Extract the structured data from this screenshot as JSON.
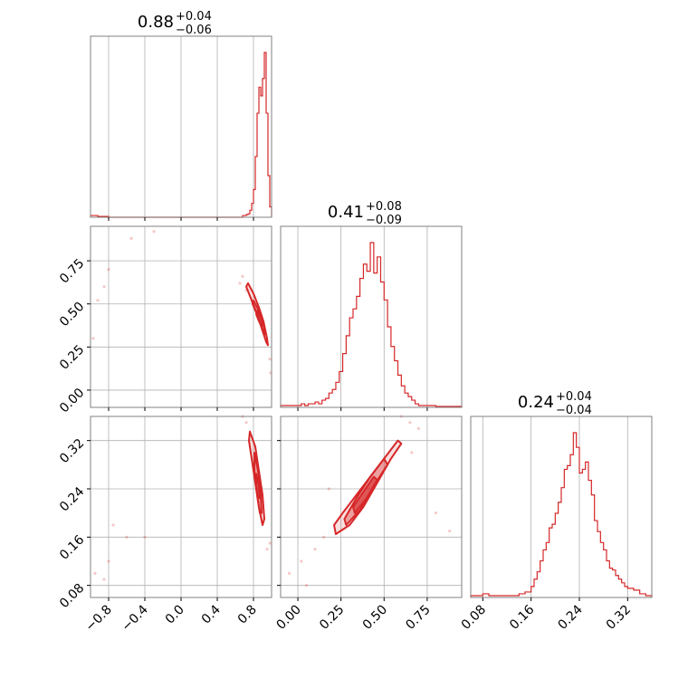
{
  "chart_data": {
    "type": "corner",
    "color": "#d62728",
    "grid": true,
    "parameters": [
      {
        "title": {
          "value": "0.88",
          "upper": "+0.04",
          "lower": "−0.06"
        },
        "range": [
          -1.0,
          1.0
        ],
        "ticks": [
          -0.8,
          -0.4,
          0.0,
          0.4,
          0.8
        ],
        "tick_labels": [
          "−0.8",
          "−0.4",
          "0.0",
          "0.4",
          "0.8"
        ],
        "hist": {
          "bin_edges": [
            -1.0,
            -0.98,
            -0.96,
            -0.94,
            -0.92,
            -0.9,
            -0.88,
            -0.86,
            -0.84,
            -0.82,
            -0.8,
            -0.4,
            0.6,
            0.62,
            0.64,
            0.66,
            0.68,
            0.7,
            0.72,
            0.74,
            0.76,
            0.78,
            0.8,
            0.82,
            0.84,
            0.86,
            0.88,
            0.9,
            0.92,
            0.94,
            0.96,
            0.98,
            1.0
          ],
          "counts": [
            0.01,
            0.01,
            0.01,
            0.01,
            0.005,
            0.005,
            0.005,
            0.005,
            0.005,
            0.005,
            0.0,
            0.0,
            0.0,
            0.0,
            0.0,
            0.0,
            0.01,
            0.01,
            0.015,
            0.02,
            0.04,
            0.08,
            0.16,
            0.35,
            0.6,
            0.75,
            0.7,
            0.8,
            0.95,
            0.6,
            0.24,
            0.06
          ]
        }
      },
      {
        "title": {
          "value": "0.41",
          "upper": "+0.08",
          "lower": "−0.09"
        },
        "range": [
          -0.1,
          0.95
        ],
        "ticks": [
          0.0,
          0.25,
          0.5,
          0.75
        ],
        "tick_labels": [
          "0.00",
          "0.25",
          "0.50",
          "0.75"
        ],
        "hist": {
          "bin_edges": [
            -0.1,
            0.02,
            0.04,
            0.06,
            0.08,
            0.1,
            0.12,
            0.14,
            0.16,
            0.18,
            0.2,
            0.22,
            0.24,
            0.26,
            0.28,
            0.3,
            0.32,
            0.34,
            0.36,
            0.38,
            0.4,
            0.42,
            0.44,
            0.46,
            0.48,
            0.5,
            0.52,
            0.54,
            0.56,
            0.58,
            0.6,
            0.62,
            0.64,
            0.66,
            0.68,
            0.7,
            0.75,
            0.8,
            0.95
          ],
          "counts": [
            0.01,
            0.02,
            0.01,
            0.02,
            0.02,
            0.03,
            0.02,
            0.04,
            0.05,
            0.08,
            0.1,
            0.14,
            0.2,
            0.3,
            0.4,
            0.5,
            0.55,
            0.62,
            0.72,
            0.8,
            0.76,
            0.92,
            0.75,
            0.84,
            0.7,
            0.6,
            0.45,
            0.34,
            0.26,
            0.18,
            0.12,
            0.08,
            0.06,
            0.04,
            0.02,
            0.01,
            0.01,
            0.005
          ]
        }
      },
      {
        "title": {
          "value": "0.24",
          "upper": "+0.04",
          "lower": "−0.04"
        },
        "range": [
          0.06,
          0.36
        ],
        "ticks": [
          0.08,
          0.16,
          0.24,
          0.32
        ],
        "tick_labels": [
          "0.08",
          "0.16",
          "0.24",
          "0.32"
        ],
        "hist": {
          "bin_edges": [
            0.06,
            0.07,
            0.08,
            0.09,
            0.1,
            0.11,
            0.12,
            0.13,
            0.14,
            0.15,
            0.16,
            0.165,
            0.17,
            0.175,
            0.18,
            0.185,
            0.19,
            0.195,
            0.2,
            0.205,
            0.21,
            0.215,
            0.22,
            0.225,
            0.23,
            0.235,
            0.24,
            0.245,
            0.25,
            0.255,
            0.26,
            0.265,
            0.27,
            0.275,
            0.28,
            0.285,
            0.29,
            0.295,
            0.3,
            0.305,
            0.31,
            0.315,
            0.32,
            0.33,
            0.34,
            0.35,
            0.36
          ],
          "counts": [
            0.01,
            0.01,
            0.02,
            0.01,
            0.01,
            0.01,
            0.01,
            0.01,
            0.02,
            0.03,
            0.06,
            0.1,
            0.14,
            0.2,
            0.26,
            0.3,
            0.38,
            0.4,
            0.46,
            0.52,
            0.6,
            0.7,
            0.72,
            0.78,
            0.9,
            0.82,
            0.68,
            0.7,
            0.74,
            0.64,
            0.56,
            0.42,
            0.36,
            0.3,
            0.26,
            0.2,
            0.16,
            0.15,
            0.12,
            0.1,
            0.08,
            0.06,
            0.05,
            0.04,
            0.02,
            0.01
          ]
        }
      }
    ],
    "pairs": [
      {
        "x_param": 0,
        "y_param": 1,
        "contours": [
          [
            [
              0.74,
              0.62
            ],
            [
              0.8,
              0.56
            ],
            [
              0.86,
              0.48
            ],
            [
              0.91,
              0.4
            ],
            [
              0.95,
              0.3
            ],
            [
              0.96,
              0.26
            ],
            [
              0.94,
              0.28
            ],
            [
              0.89,
              0.36
            ],
            [
              0.84,
              0.44
            ],
            [
              0.78,
              0.52
            ],
            [
              0.72,
              0.6
            ]
          ],
          [
            [
              0.8,
              0.52
            ],
            [
              0.85,
              0.47
            ],
            [
              0.9,
              0.4
            ],
            [
              0.93,
              0.33
            ],
            [
              0.92,
              0.32
            ],
            [
              0.88,
              0.38
            ],
            [
              0.83,
              0.45
            ],
            [
              0.79,
              0.5
            ]
          ],
          [
            [
              0.84,
              0.46
            ],
            [
              0.88,
              0.42
            ],
            [
              0.9,
              0.38
            ],
            [
              0.89,
              0.37
            ],
            [
              0.86,
              0.4
            ],
            [
              0.83,
              0.44
            ]
          ]
        ],
        "points": [
          [
            -0.92,
            0.52
          ],
          [
            -0.97,
            0.3
          ],
          [
            -0.8,
            0.7
          ],
          [
            -0.55,
            0.88
          ],
          [
            -0.3,
            0.92
          ],
          [
            0.68,
            0.66
          ],
          [
            0.65,
            0.62
          ],
          [
            0.98,
            0.18
          ],
          [
            0.99,
            0.1
          ],
          [
            0.72,
            0.58
          ],
          [
            -0.85,
            0.6
          ]
        ]
      },
      {
        "x_param": 0,
        "y_param": 2,
        "contours": [
          [
            [
              0.76,
              0.335
            ],
            [
              0.82,
              0.31
            ],
            [
              0.86,
              0.27
            ],
            [
              0.9,
              0.23
            ],
            [
              0.92,
              0.19
            ],
            [
              0.9,
              0.18
            ],
            [
              0.86,
              0.21
            ],
            [
              0.82,
              0.25
            ],
            [
              0.78,
              0.29
            ],
            [
              0.75,
              0.32
            ]
          ],
          [
            [
              0.81,
              0.3
            ],
            [
              0.85,
              0.27
            ],
            [
              0.88,
              0.23
            ],
            [
              0.89,
              0.2
            ],
            [
              0.87,
              0.2
            ],
            [
              0.84,
              0.23
            ],
            [
              0.81,
              0.27
            ]
          ],
          [
            [
              0.83,
              0.265
            ],
            [
              0.86,
              0.245
            ],
            [
              0.87,
              0.225
            ],
            [
              0.85,
              0.225
            ],
            [
              0.83,
              0.245
            ]
          ]
        ],
        "points": [
          [
            -0.75,
            0.18
          ],
          [
            -0.6,
            0.16
          ],
          [
            -0.4,
            0.16
          ],
          [
            -0.8,
            0.12
          ],
          [
            -0.95,
            0.1
          ],
          [
            0.68,
            0.36
          ],
          [
            0.72,
            0.35
          ],
          [
            0.98,
            0.15
          ],
          [
            0.95,
            0.14
          ],
          [
            -0.85,
            0.09
          ]
        ]
      },
      {
        "x_param": 1,
        "y_param": 2,
        "contours": [
          [
            [
              0.22,
              0.165
            ],
            [
              0.3,
              0.18
            ],
            [
              0.38,
              0.21
            ],
            [
              0.46,
              0.25
            ],
            [
              0.54,
              0.29
            ],
            [
              0.6,
              0.315
            ],
            [
              0.58,
              0.32
            ],
            [
              0.5,
              0.29
            ],
            [
              0.42,
              0.26
            ],
            [
              0.34,
              0.23
            ],
            [
              0.26,
              0.2
            ],
            [
              0.21,
              0.18
            ]
          ],
          [
            [
              0.28,
              0.18
            ],
            [
              0.36,
              0.205
            ],
            [
              0.44,
              0.245
            ],
            [
              0.52,
              0.28
            ],
            [
              0.5,
              0.29
            ],
            [
              0.42,
              0.26
            ],
            [
              0.34,
              0.225
            ],
            [
              0.27,
              0.19
            ]
          ],
          [
            [
              0.33,
              0.2
            ],
            [
              0.4,
              0.225
            ],
            [
              0.46,
              0.255
            ],
            [
              0.44,
              0.26
            ],
            [
              0.38,
              0.235
            ],
            [
              0.32,
              0.21
            ]
          ]
        ],
        "points": [
          [
            -0.05,
            0.1
          ],
          [
            0.02,
            0.12
          ],
          [
            0.1,
            0.14
          ],
          [
            0.15,
            0.16
          ],
          [
            0.6,
            0.36
          ],
          [
            0.65,
            0.35
          ],
          [
            0.7,
            0.34
          ],
          [
            0.8,
            0.2
          ],
          [
            0.88,
            0.17
          ],
          [
            0.05,
            0.08
          ],
          [
            0.18,
            0.24
          ],
          [
            0.66,
            0.3
          ]
        ]
      }
    ]
  }
}
